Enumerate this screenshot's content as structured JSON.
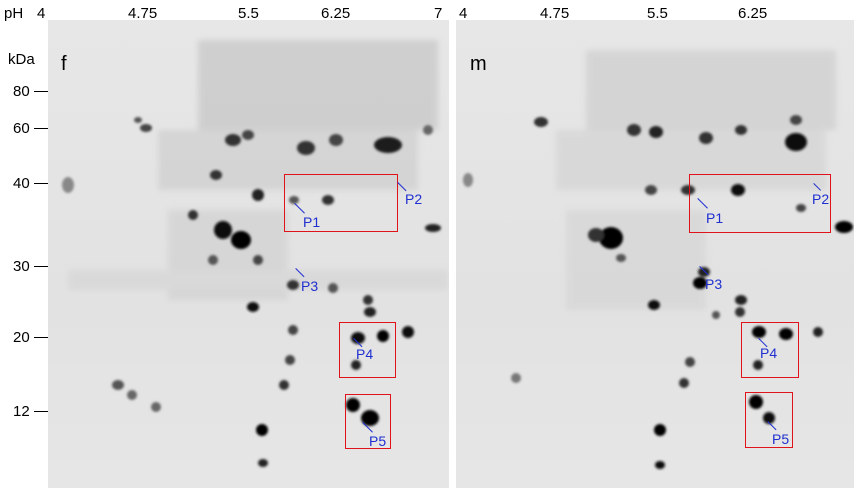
{
  "ph_axis": {
    "label": "pH",
    "left_ticks": [
      "4",
      "4.75",
      "5.5",
      "6.25",
      "7"
    ],
    "right_ticks": [
      "4",
      "4.75",
      "5.5",
      "6.25"
    ]
  },
  "mw_axis": {
    "unit": "kDa",
    "ticks": [
      "80",
      "60",
      "40",
      "30",
      "20",
      "12"
    ]
  },
  "panels": [
    {
      "letter": "f",
      "proteins": [
        "P1",
        "P2",
        "P3",
        "P4",
        "P5"
      ]
    },
    {
      "letter": "m",
      "proteins": [
        "P1",
        "P2",
        "P3",
        "P4",
        "P5"
      ]
    }
  ],
  "colors": {
    "box": "#e0131a",
    "label": "#1f2fd0",
    "gel": "#e4e4e4"
  }
}
